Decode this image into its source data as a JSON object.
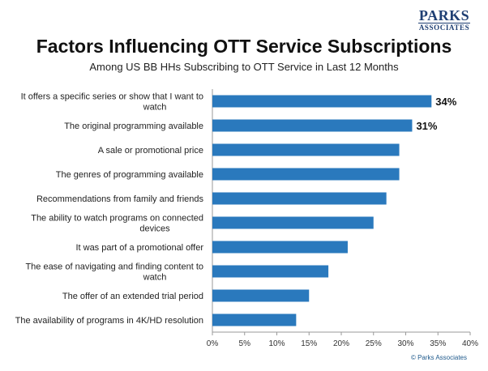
{
  "brand": {
    "logo_line1": "PARKS",
    "logo_line2": "ASSOCIATES",
    "copyright": "© Parks Associates"
  },
  "colors": {
    "bar": "#2a79bd",
    "text": "#222222",
    "axis": "#999999"
  },
  "chart_data": {
    "type": "bar",
    "orientation": "horizontal",
    "title": "Factors Influencing OTT Service Subscriptions",
    "subtitle": "Among US BB HHs Subscribing to OTT Service in Last 12 Months",
    "categories": [
      [
        "It offers a specific series or show that I want to",
        "watch"
      ],
      [
        "The original programming available"
      ],
      [
        "A sale or promotional price"
      ],
      [
        "The genres of programming available"
      ],
      [
        "Recommendations from family and friends"
      ],
      [
        "The ability to watch programs on connected",
        "devices"
      ],
      [
        "It was part of a promotional offer"
      ],
      [
        "The ease of navigating and finding content to",
        "watch"
      ],
      [
        "The offer of an extended trial period"
      ],
      [
        "The availability of programs in 4K/HD resolution"
      ]
    ],
    "values": [
      34,
      31,
      29,
      29,
      27,
      25,
      21,
      18,
      15,
      13
    ],
    "data_labels": [
      "34%",
      "31%",
      "",
      "",
      "",
      "",
      "",
      "",
      "",
      ""
    ],
    "xlim": [
      0,
      40
    ],
    "xticks": [
      "0%",
      "5%",
      "10%",
      "15%",
      "20%",
      "25%",
      "30%",
      "35%",
      "40%"
    ],
    "xlabel": "",
    "ylabel": "",
    "grid": false,
    "legend": "none"
  }
}
